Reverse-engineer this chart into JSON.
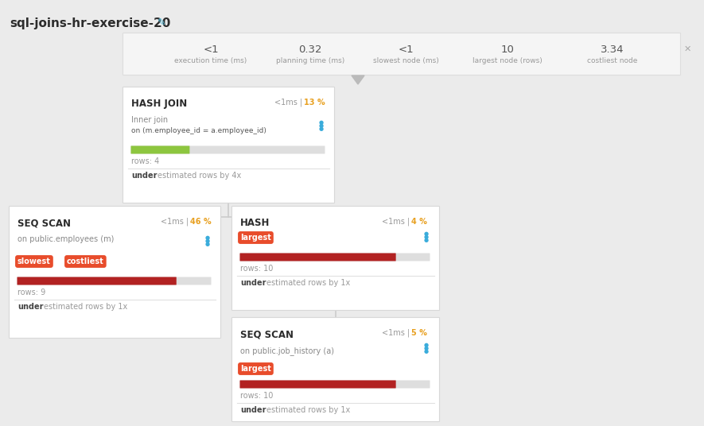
{
  "title": "sql-joins-hr-exercise-20",
  "background_color": "#ebebeb",
  "stats": [
    {
      "value": "<1",
      "label": "execution time (ms)"
    },
    {
      "value": "0.32",
      "label": "planning time (ms)"
    },
    {
      "value": "<1",
      "label": "slowest node (ms)"
    },
    {
      "value": "10",
      "label": "largest node (rows)"
    },
    {
      "value": "3.34",
      "label": "costliest node"
    }
  ],
  "colors": {
    "card_bg": "#ffffff",
    "card_border": "#d8d8d8",
    "title_color": "#2c2c2c",
    "stat_value_color": "#555555",
    "stat_label_color": "#999999",
    "time_color": "#999999",
    "pct_color": "#e8a020",
    "sub_color": "#888888",
    "on_color": "#555555",
    "rows_color": "#999999",
    "under_bold_color": "#444444",
    "under_rest_color": "#999999",
    "badge_bg": "#e84c2b",
    "badge_text": "#ffffff",
    "db_icon_color": "#3aacdb",
    "connector_color": "#cccccc",
    "pencil_color": "#5bc0de",
    "bar_bg": "#dedede",
    "bar_green": "#8dc63f",
    "bar_red": "#b22222",
    "stats_box_bg": "#f5f5f5",
    "stats_box_border": "#dddddd",
    "x_button": "#aaaaaa",
    "triangle_color": "#bbbbbb"
  }
}
